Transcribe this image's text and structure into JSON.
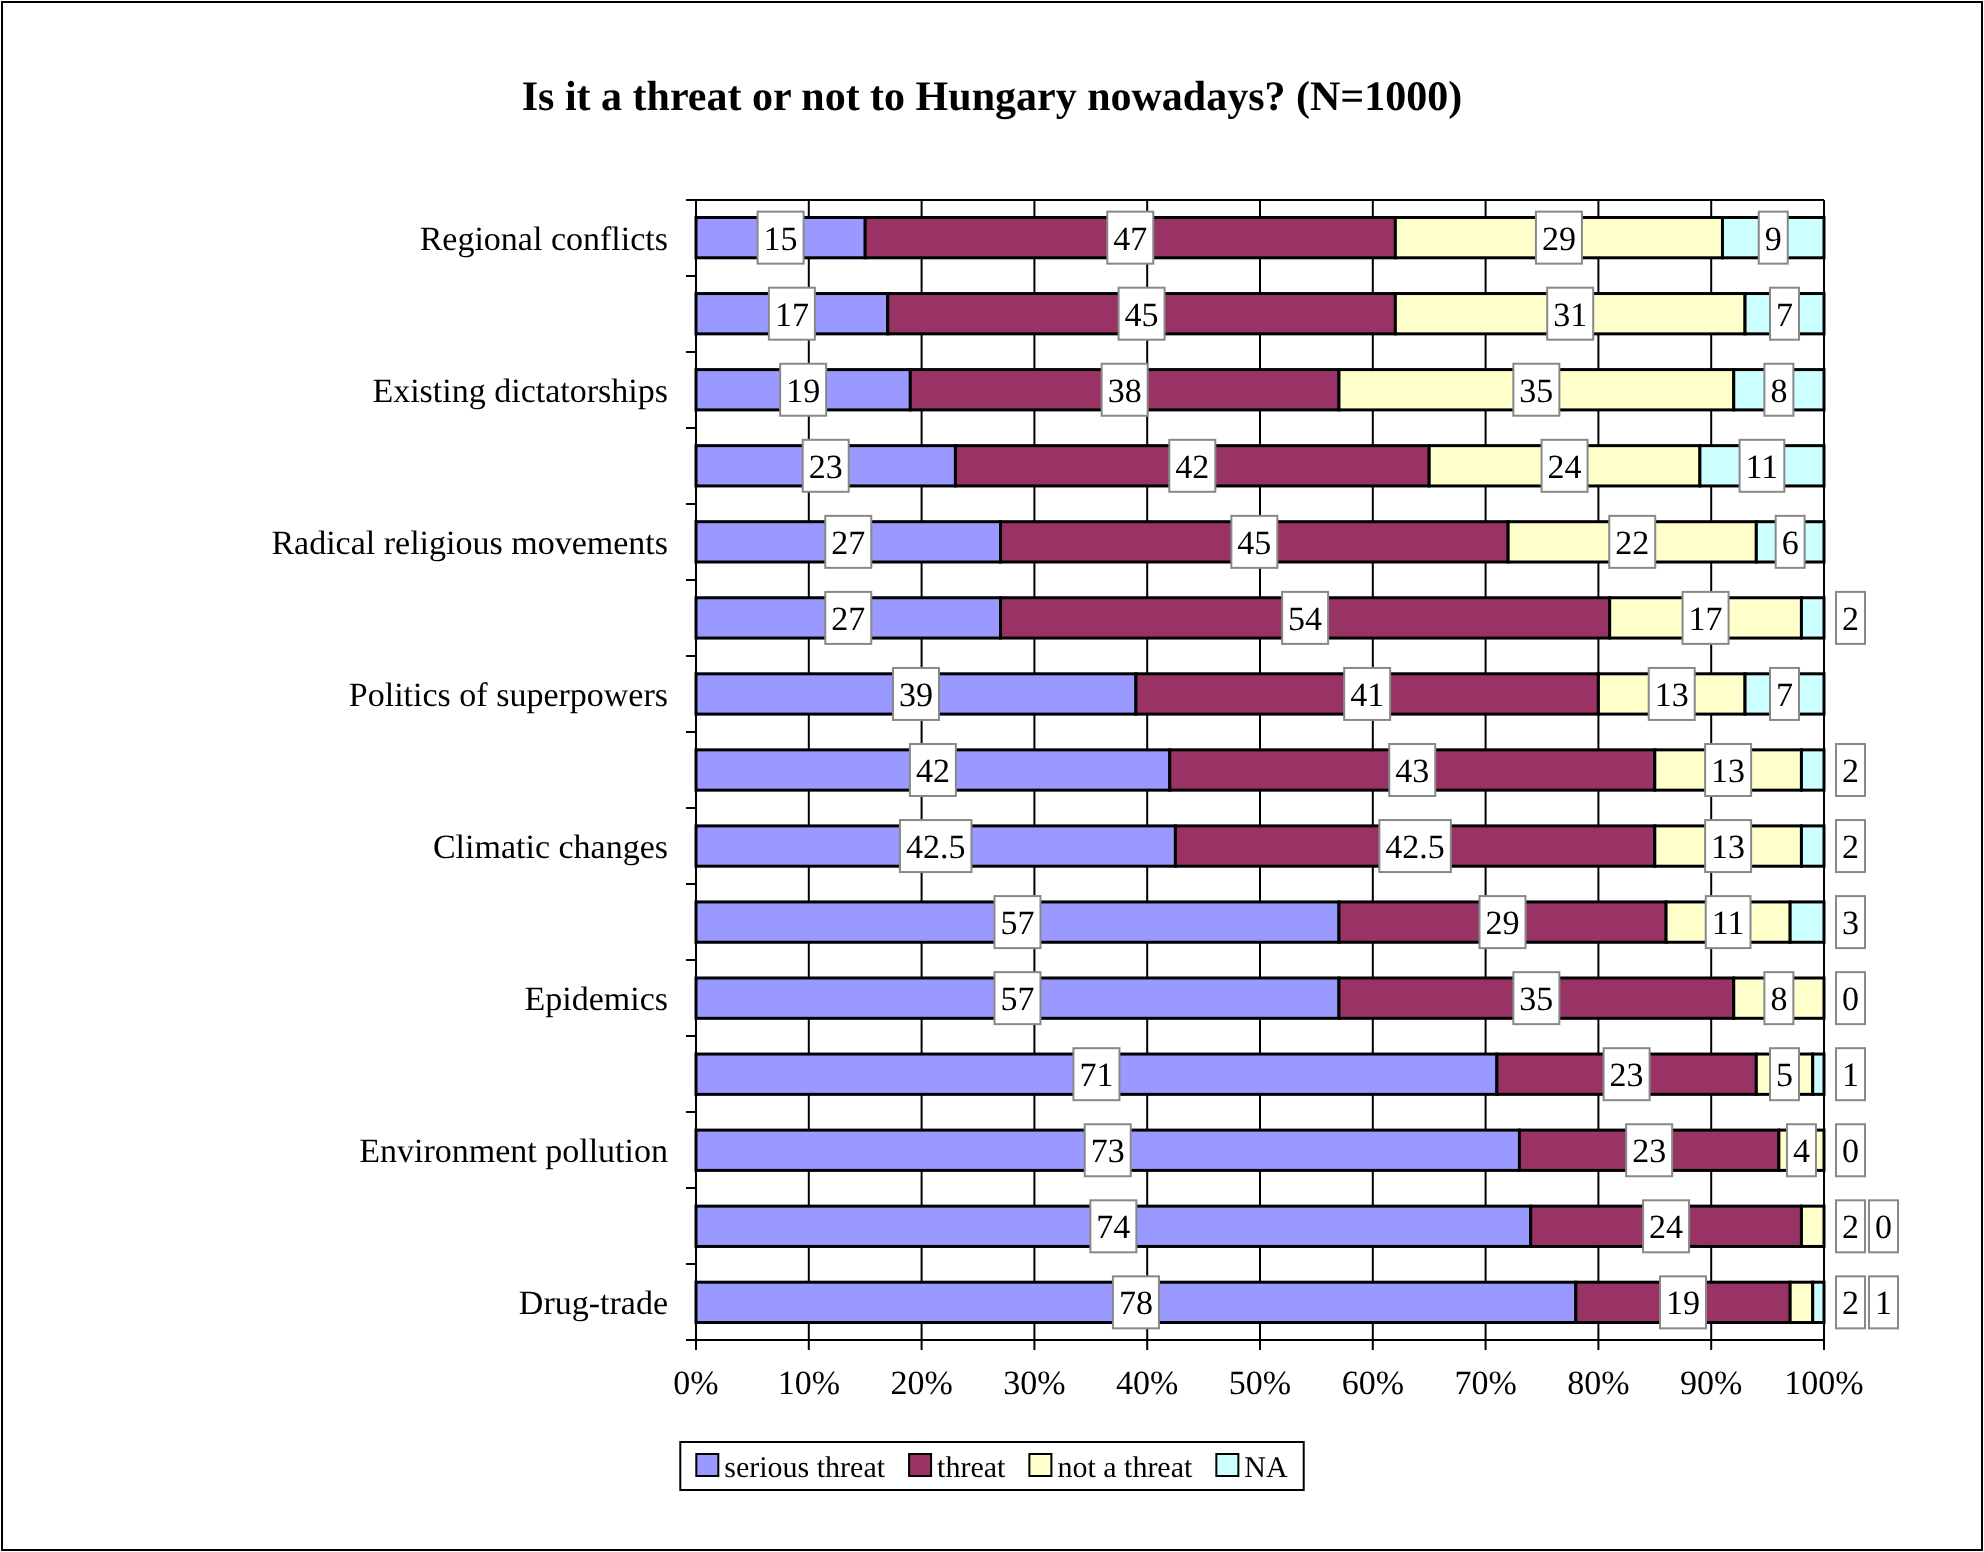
{
  "chart_data": {
    "type": "bar",
    "orientation": "horizontal",
    "stacked": true,
    "title": "Is it a threat or not to Hungary nowadays? (N=1000)",
    "categories": [
      "Regional conflicts",
      null,
      "Existing dictatorships",
      null,
      "Radical religious movements",
      null,
      "Politics of superpowers",
      null,
      "Climatic changes",
      null,
      "Epidemics",
      null,
      "Environment pollution",
      null,
      "Drug-trade"
    ],
    "series": [
      {
        "name": "serious threat",
        "color": "#9999ff",
        "values": [
          15,
          17,
          19,
          23,
          27,
          27,
          39,
          42,
          42.5,
          57,
          57,
          71,
          73,
          74,
          78
        ]
      },
      {
        "name": "threat",
        "color": "#993366",
        "values": [
          47,
          45,
          38,
          42,
          45,
          54,
          41,
          43,
          42.5,
          29,
          35,
          23,
          23,
          24,
          19
        ]
      },
      {
        "name": "not a threat",
        "color": "#ffffcc",
        "values": [
          29,
          31,
          35,
          24,
          22,
          17,
          13,
          13,
          13,
          11,
          8,
          5,
          4,
          2,
          2
        ]
      },
      {
        "name": "NA",
        "color": "#ccffff",
        "values": [
          9,
          7,
          8,
          11,
          6,
          2,
          7,
          2,
          2,
          3,
          0,
          1,
          0,
          0,
          1
        ]
      }
    ],
    "xlim": [
      0,
      100
    ],
    "xticks": [
      {
        "value": 0,
        "label": "0%"
      },
      {
        "value": 10,
        "label": "10%"
      },
      {
        "value": 20,
        "label": "20%"
      },
      {
        "value": 30,
        "label": "30%"
      },
      {
        "value": 40,
        "label": "40%"
      },
      {
        "value": 50,
        "label": "50%"
      },
      {
        "value": 60,
        "label": "60%"
      },
      {
        "value": 70,
        "label": "70%"
      },
      {
        "value": 80,
        "label": "80%"
      },
      {
        "value": 90,
        "label": "90%"
      },
      {
        "value": 100,
        "label": "100%"
      }
    ],
    "grid": "x",
    "legend": "bottom",
    "data_labels": true
  }
}
